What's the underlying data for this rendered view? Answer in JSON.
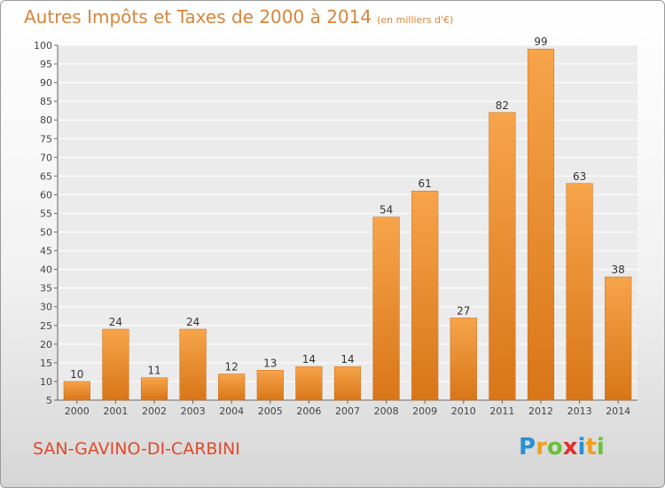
{
  "chart_data": {
    "type": "bar",
    "title": "Autres Impôts et Taxes de 2000 à 2014",
    "subtitle": "(en milliers d'€)",
    "categories": [
      "2000",
      "2001",
      "2002",
      "2003",
      "2004",
      "2005",
      "2006",
      "2007",
      "2008",
      "2009",
      "2010",
      "2011",
      "2012",
      "2013",
      "2014"
    ],
    "values": [
      10,
      24,
      11,
      24,
      12,
      13,
      14,
      14,
      54,
      61,
      27,
      82,
      99,
      63,
      38
    ],
    "ylim": [
      5,
      100
    ],
    "yticks": [
      5,
      10,
      15,
      20,
      25,
      30,
      35,
      40,
      45,
      50,
      55,
      60,
      65,
      70,
      75,
      80,
      85,
      90,
      95,
      100
    ],
    "grid": true,
    "colors": {
      "bar_light": "#f7a44a",
      "bar_dark": "#d87618",
      "title": "#d7853a"
    }
  },
  "commune": "SAN-GAVINO-DI-CARBINI",
  "brand": {
    "letters": [
      "P",
      "r",
      "o",
      "x",
      "i",
      "t",
      "i"
    ],
    "colors": [
      "#2b8fd0",
      "#f0a020",
      "#6bbf3a",
      "#e03030",
      "#2b8fd0",
      "#f0a020",
      "#6bbf3a"
    ]
  }
}
